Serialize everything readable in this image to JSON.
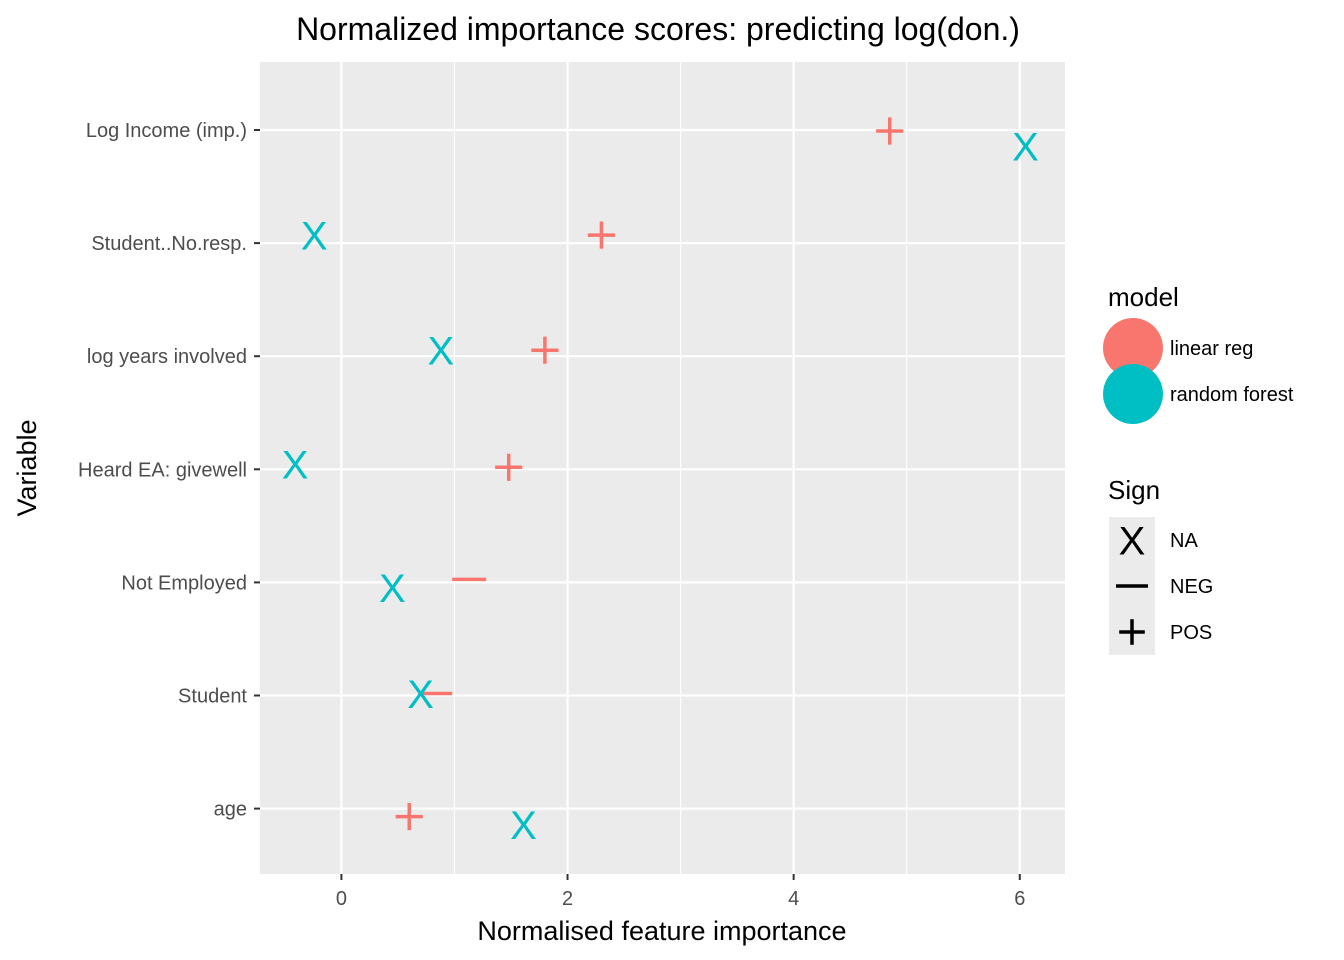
{
  "chart_data": {
    "type": "scatter",
    "title": "Normalized importance scores: predicting log(don.)",
    "xlabel": "Normalised feature importance",
    "ylabel": "Variable",
    "xlim": [
      -0.72,
      6.4
    ],
    "x_ticks": [
      0,
      2,
      4,
      6
    ],
    "grid": true,
    "categories": [
      "Log Income (imp.)",
      "Student..No.resp.",
      "log years involved",
      "Heard EA: givewell",
      "Not Employed",
      "Student",
      "age"
    ],
    "series": [
      {
        "name": "linear reg",
        "color": "#F8766D",
        "points": [
          {
            "category": "Log Income (imp.)",
            "x": 4.85,
            "sign": "POS"
          },
          {
            "category": "Student..No.resp.",
            "x": 2.3,
            "sign": "POS"
          },
          {
            "category": "log years involved",
            "x": 1.8,
            "sign": "POS"
          },
          {
            "category": "Heard EA: givewell",
            "x": 1.48,
            "sign": "POS"
          },
          {
            "category": "Not Employed",
            "x": 1.13,
            "sign": "NEG"
          },
          {
            "category": "Student",
            "x": 0.83,
            "sign": "NEG"
          },
          {
            "category": "age",
            "x": 0.6,
            "sign": "POS"
          }
        ]
      },
      {
        "name": "random forest",
        "color": "#00BFC4",
        "points": [
          {
            "category": "Log Income (imp.)",
            "x": 6.05,
            "sign": "NA"
          },
          {
            "category": "Student..No.resp.",
            "x": -0.24,
            "sign": "NA"
          },
          {
            "category": "log years involved",
            "x": 0.88,
            "sign": "NA"
          },
          {
            "category": "Heard EA: givewell",
            "x": -0.41,
            "sign": "NA"
          },
          {
            "category": "Not Employed",
            "x": 0.45,
            "sign": "NA"
          },
          {
            "category": "Student",
            "x": 0.7,
            "sign": "NA"
          },
          {
            "category": "age",
            "x": 1.61,
            "sign": "NA"
          }
        ]
      }
    ],
    "legend": {
      "placement": "right",
      "model": {
        "title": "model",
        "items": [
          {
            "label": "linear reg",
            "color": "#F8766D"
          },
          {
            "label": "random forest",
            "color": "#00BFC4"
          }
        ]
      },
      "sign": {
        "title": "Sign",
        "items": [
          {
            "label": "NA",
            "symbol": "x"
          },
          {
            "label": "NEG",
            "symbol": "minus"
          },
          {
            "label": "POS",
            "symbol": "plus"
          }
        ]
      }
    },
    "colors": {
      "panel": "#EBEBEB",
      "grid": "#FFFFFF",
      "tick_text": "#4D4D4D",
      "legend_key_bg": "#EBEBEB"
    }
  }
}
